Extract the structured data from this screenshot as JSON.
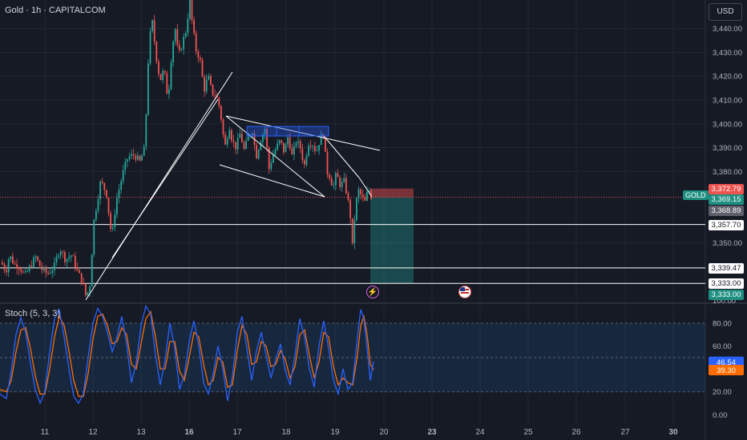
{
  "header": {
    "title": "Gold · 1h · CAPITALCOM",
    "currency": "USD",
    "symbol_tag": "GOLD"
  },
  "stoch": {
    "label": "Stoch (5, 3, 3)"
  },
  "colors": {
    "bg": "#161a25",
    "up": "#26a69a",
    "down": "#ef5350",
    "stoch_k": "#2962ff",
    "stoch_d": "#ff6d00",
    "grid": "#232733"
  },
  "price_labels": [
    {
      "text": "3,372.79",
      "bg": "#ef5350",
      "fg": "#ffffff",
      "price": 3372.79
    },
    {
      "text": "3,369.15",
      "bg": "#1e8f80",
      "fg": "#ffffff",
      "price": 3369.15
    },
    {
      "text": "3,368.89",
      "bg": "#5d606b",
      "fg": "#ffffff",
      "price": 3368.89
    },
    {
      "text": "3,357.70",
      "bg": "#ffffff",
      "fg": "#131722",
      "price": 3357.7
    },
    {
      "text": "3,339.47",
      "bg": "#ffffff",
      "fg": "#131722",
      "price": 3339.47
    },
    {
      "text": "3,333.00",
      "bg": "#ffffff",
      "fg": "#131722",
      "price": 3333.0
    },
    {
      "text": "3,333.00",
      "bg": "#1e8f80",
      "fg": "#ffffff",
      "price": 3330.9
    }
  ],
  "chart_data": {
    "type": "candlestick",
    "y_ticks": [
      "3,440.00",
      "3,430.00",
      "3,420.00",
      "3,410.00",
      "3,400.00",
      "3,390.00",
      "3,380.00",
      "3,350.00"
    ],
    "y_tick_values": [
      3440,
      3430,
      3420,
      3410,
      3400,
      3390,
      3380,
      3350
    ],
    "ylim": [
      3325,
      3452
    ],
    "x_ticks": [
      {
        "label": "11",
        "bold": false
      },
      {
        "label": "12",
        "bold": false
      },
      {
        "label": "13",
        "bold": false
      },
      {
        "label": "16",
        "bold": true
      },
      {
        "label": "17",
        "bold": false
      },
      {
        "label": "18",
        "bold": false
      },
      {
        "label": "19",
        "bold": false
      },
      {
        "label": "20",
        "bold": false
      },
      {
        "label": "23",
        "bold": true
      },
      {
        "label": "24",
        "bold": false
      },
      {
        "label": "25",
        "bold": false
      },
      {
        "label": "26",
        "bold": false
      },
      {
        "label": "27",
        "bold": false
      },
      {
        "label": "30",
        "bold": true
      }
    ],
    "horizontal_levels": [
      3357.7,
      3339.47,
      3333.0
    ],
    "last_price": 3369.15,
    "price_path": [
      [
        0,
        3343
      ],
      [
        8,
        3338
      ],
      [
        12,
        3345
      ],
      [
        18,
        3341
      ],
      [
        25,
        3340
      ],
      [
        31,
        3336
      ],
      [
        38,
        3340
      ],
      [
        45,
        3344
      ],
      [
        52,
        3339
      ],
      [
        60,
        3337
      ],
      [
        68,
        3340
      ],
      [
        75,
        3348
      ],
      [
        82,
        3343
      ],
      [
        90,
        3345
      ],
      [
        97,
        3338
      ],
      [
        103,
        3334
      ],
      [
        108,
        3327
      ],
      [
        113,
        3333
      ],
      [
        117,
        3358
      ],
      [
        121,
        3366
      ],
      [
        126,
        3376
      ],
      [
        133,
        3371
      ],
      [
        140,
        3352
      ],
      [
        145,
        3367
      ],
      [
        150,
        3374
      ],
      [
        155,
        3381
      ],
      [
        160,
        3386
      ],
      [
        168,
        3387
      ],
      [
        175,
        3384
      ],
      [
        181,
        3390
      ],
      [
        186,
        3432
      ],
      [
        190,
        3444
      ],
      [
        195,
        3429
      ],
      [
        200,
        3418
      ],
      [
        205,
        3423
      ],
      [
        210,
        3410
      ],
      [
        215,
        3432
      ],
      [
        219,
        3440
      ],
      [
        223,
        3428
      ],
      [
        228,
        3434
      ],
      [
        233,
        3440
      ],
      [
        237,
        3452
      ],
      [
        241,
        3440
      ],
      [
        245,
        3431
      ],
      [
        250,
        3427
      ],
      [
        255,
        3414
      ],
      [
        260,
        3420
      ],
      [
        265,
        3413
      ],
      [
        270,
        3412
      ],
      [
        275,
        3406
      ],
      [
        279,
        3395
      ],
      [
        282,
        3390
      ],
      [
        286,
        3400
      ],
      [
        290,
        3393
      ],
      [
        295,
        3390
      ],
      [
        300,
        3396
      ],
      [
        305,
        3389
      ],
      [
        310,
        3394
      ],
      [
        315,
        3398
      ],
      [
        320,
        3386
      ],
      [
        326,
        3394
      ],
      [
        331,
        3398
      ],
      [
        336,
        3381
      ],
      [
        340,
        3386
      ],
      [
        345,
        3390
      ],
      [
        350,
        3393
      ],
      [
        355,
        3388
      ],
      [
        360,
        3395
      ],
      [
        365,
        3386
      ],
      [
        370,
        3393
      ],
      [
        375,
        3390
      ],
      [
        380,
        3382
      ],
      [
        385,
        3392
      ],
      [
        390,
        3392
      ],
      [
        395,
        3388
      ],
      [
        400,
        3394
      ],
      [
        404,
        3396
      ],
      [
        408,
        3380
      ],
      [
        412,
        3378
      ],
      [
        416,
        3373
      ],
      [
        420,
        3379
      ],
      [
        425,
        3374
      ],
      [
        430,
        3376
      ],
      [
        435,
        3367
      ],
      [
        438,
        3360
      ],
      [
        440,
        3348
      ],
      [
        444,
        3366
      ],
      [
        448,
        3372
      ],
      [
        452,
        3369
      ],
      [
        456,
        3367
      ],
      [
        460,
        3373
      ],
      [
        464,
        3369
      ]
    ],
    "stoch_ticks": [
      "100.00",
      "80.00",
      "60.00",
      "40.00",
      "20.00",
      "0.00"
    ],
    "stoch_tick_values": [
      100,
      80,
      60,
      40,
      20,
      0
    ],
    "stoch_k_last": 46.54,
    "stoch_d_last": 39.3,
    "stoch_k": [
      [
        0,
        18
      ],
      [
        8,
        14
      ],
      [
        14,
        38
      ],
      [
        20,
        70
      ],
      [
        26,
        85
      ],
      [
        32,
        72
      ],
      [
        38,
        45
      ],
      [
        44,
        22
      ],
      [
        50,
        10
      ],
      [
        56,
        20
      ],
      [
        62,
        55
      ],
      [
        68,
        84
      ],
      [
        74,
        92
      ],
      [
        80,
        68
      ],
      [
        86,
        40
      ],
      [
        92,
        16
      ],
      [
        98,
        10
      ],
      [
        104,
        18
      ],
      [
        110,
        50
      ],
      [
        116,
        80
      ],
      [
        122,
        93
      ],
      [
        128,
        86
      ],
      [
        134,
        72
      ],
      [
        140,
        55
      ],
      [
        146,
        68
      ],
      [
        152,
        86
      ],
      [
        158,
        62
      ],
      [
        164,
        28
      ],
      [
        170,
        45
      ],
      [
        176,
        78
      ],
      [
        182,
        95
      ],
      [
        188,
        88
      ],
      [
        194,
        52
      ],
      [
        200,
        26
      ],
      [
        206,
        48
      ],
      [
        212,
        80
      ],
      [
        218,
        58
      ],
      [
        224,
        22
      ],
      [
        230,
        34
      ],
      [
        236,
        64
      ],
      [
        242,
        82
      ],
      [
        248,
        60
      ],
      [
        254,
        28
      ],
      [
        260,
        18
      ],
      [
        266,
        36
      ],
      [
        272,
        60
      ],
      [
        278,
        40
      ],
      [
        284,
        12
      ],
      [
        290,
        34
      ],
      [
        296,
        72
      ],
      [
        302,
        86
      ],
      [
        308,
        58
      ],
      [
        314,
        30
      ],
      [
        320,
        56
      ],
      [
        326,
        72
      ],
      [
        332,
        52
      ],
      [
        338,
        32
      ],
      [
        344,
        48
      ],
      [
        350,
        62
      ],
      [
        356,
        38
      ],
      [
        362,
        26
      ],
      [
        368,
        52
      ],
      [
        374,
        84
      ],
      [
        380,
        68
      ],
      [
        386,
        40
      ],
      [
        392,
        24
      ],
      [
        398,
        60
      ],
      [
        404,
        82
      ],
      [
        410,
        58
      ],
      [
        416,
        30
      ],
      [
        422,
        18
      ],
      [
        428,
        40
      ],
      [
        434,
        22
      ],
      [
        440,
        28
      ],
      [
        446,
        68
      ],
      [
        450,
        92
      ],
      [
        454,
        84
      ],
      [
        458,
        58
      ],
      [
        462,
        30
      ],
      [
        466,
        46.54
      ]
    ],
    "stoch_d": [
      [
        0,
        22
      ],
      [
        8,
        20
      ],
      [
        14,
        30
      ],
      [
        20,
        55
      ],
      [
        26,
        74
      ],
      [
        32,
        76
      ],
      [
        38,
        58
      ],
      [
        44,
        34
      ],
      [
        50,
        18
      ],
      [
        56,
        18
      ],
      [
        62,
        40
      ],
      [
        68,
        68
      ],
      [
        74,
        86
      ],
      [
        80,
        78
      ],
      [
        86,
        56
      ],
      [
        92,
        30
      ],
      [
        98,
        16
      ],
      [
        104,
        16
      ],
      [
        110,
        36
      ],
      [
        116,
        66
      ],
      [
        122,
        86
      ],
      [
        128,
        88
      ],
      [
        134,
        78
      ],
      [
        140,
        62
      ],
      [
        146,
        64
      ],
      [
        152,
        76
      ],
      [
        158,
        70
      ],
      [
        164,
        44
      ],
      [
        170,
        40
      ],
      [
        176,
        62
      ],
      [
        182,
        84
      ],
      [
        188,
        90
      ],
      [
        194,
        68
      ],
      [
        200,
        40
      ],
      [
        206,
        40
      ],
      [
        212,
        64
      ],
      [
        218,
        64
      ],
      [
        224,
        38
      ],
      [
        230,
        30
      ],
      [
        236,
        50
      ],
      [
        242,
        72
      ],
      [
        248,
        68
      ],
      [
        254,
        44
      ],
      [
        260,
        26
      ],
      [
        266,
        30
      ],
      [
        272,
        50
      ],
      [
        278,
        46
      ],
      [
        284,
        24
      ],
      [
        290,
        26
      ],
      [
        296,
        56
      ],
      [
        302,
        78
      ],
      [
        308,
        70
      ],
      [
        314,
        44
      ],
      [
        320,
        46
      ],
      [
        326,
        64
      ],
      [
        332,
        60
      ],
      [
        338,
        42
      ],
      [
        344,
        44
      ],
      [
        350,
        56
      ],
      [
        356,
        48
      ],
      [
        362,
        32
      ],
      [
        368,
        42
      ],
      [
        374,
        70
      ],
      [
        380,
        74
      ],
      [
        386,
        52
      ],
      [
        392,
        32
      ],
      [
        398,
        46
      ],
      [
        404,
        72
      ],
      [
        410,
        68
      ],
      [
        416,
        42
      ],
      [
        422,
        26
      ],
      [
        428,
        32
      ],
      [
        434,
        28
      ],
      [
        440,
        26
      ],
      [
        446,
        52
      ],
      [
        450,
        78
      ],
      [
        454,
        86
      ],
      [
        458,
        70
      ],
      [
        462,
        44
      ],
      [
        466,
        39.3
      ]
    ]
  }
}
